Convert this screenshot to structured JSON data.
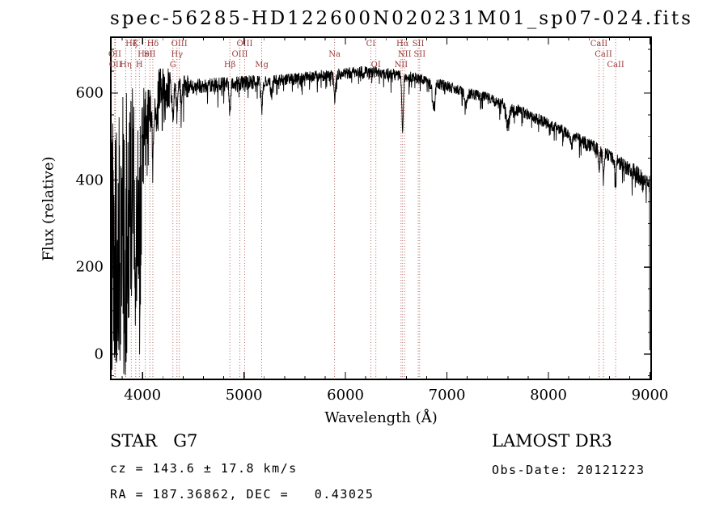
{
  "chart_data": {
    "type": "line",
    "title": "spec-56285-HD122600N020231M01_sp07-024.fits",
    "xlabel": "Wavelength (Å)",
    "ylabel": "Flux (relative)",
    "xlim": [
      3680,
      9020
    ],
    "ylim": [
      -60,
      730
    ],
    "xticks": [
      4000,
      5000,
      6000,
      7000,
      8000,
      9000
    ],
    "yticks": [
      0,
      200,
      400,
      600
    ],
    "x_minor_step": 200,
    "y_minor_step": 50,
    "grid": false,
    "legend": "none",
    "line_color": "#000000",
    "marker_line_color": "#9c3c3c",
    "noise_seed": 20121223,
    "sampling": {
      "start": 3692,
      "end": 9006,
      "step": 2.2
    },
    "edge_drop": {
      "wavelength": 8998,
      "flux": 10
    },
    "envelope": [
      [
        3692,
        600
      ],
      [
        3800,
        608
      ],
      [
        3900,
        612
      ],
      [
        4000,
        615
      ],
      [
        4100,
        612
      ],
      [
        4200,
        610
      ],
      [
        4300,
        612
      ],
      [
        4400,
        615
      ],
      [
        4500,
        615
      ],
      [
        4700,
        618
      ],
      [
        4900,
        620
      ],
      [
        5100,
        625
      ],
      [
        5300,
        628
      ],
      [
        5500,
        632
      ],
      [
        5700,
        638
      ],
      [
        5900,
        642
      ],
      [
        6000,
        645
      ],
      [
        6150,
        648
      ],
      [
        6300,
        648
      ],
      [
        6450,
        643
      ],
      [
        6600,
        638
      ],
      [
        6750,
        632
      ],
      [
        6900,
        622
      ],
      [
        7050,
        612
      ],
      [
        7200,
        600
      ],
      [
        7350,
        592
      ],
      [
        7500,
        580
      ],
      [
        7650,
        565
      ],
      [
        7800,
        550
      ],
      [
        7950,
        535
      ],
      [
        8100,
        518
      ],
      [
        8250,
        500
      ],
      [
        8400,
        482
      ],
      [
        8550,
        462
      ],
      [
        8700,
        440
      ],
      [
        8800,
        425
      ],
      [
        8900,
        408
      ],
      [
        8960,
        395
      ],
      [
        9006,
        388
      ]
    ],
    "noise_regions": [
      [
        3690,
        3870,
        660,
        "down"
      ],
      [
        3870,
        3990,
        480,
        "down"
      ],
      [
        3990,
        4060,
        230,
        "down"
      ],
      [
        4060,
        4150,
        110,
        "down"
      ],
      [
        4150,
        4280,
        55,
        "sym"
      ],
      [
        4280,
        4450,
        30,
        "sym"
      ],
      [
        4450,
        5200,
        20,
        "sym"
      ],
      [
        5200,
        6500,
        16,
        "sym"
      ],
      [
        6500,
        7400,
        15,
        "sym"
      ],
      [
        7400,
        8300,
        16,
        "sym"
      ],
      [
        8300,
        8760,
        19,
        "sym"
      ],
      [
        8760,
        9010,
        24,
        "sym"
      ]
    ],
    "absorption_dips": [
      [
        3934,
        180,
        6
      ],
      [
        3969,
        180,
        6
      ],
      [
        4102,
        110,
        7
      ],
      [
        4227,
        35,
        6
      ],
      [
        4300,
        55,
        9
      ],
      [
        4340,
        65,
        7
      ],
      [
        4383,
        35,
        6
      ],
      [
        4861,
        65,
        7
      ],
      [
        5175,
        45,
        11
      ],
      [
        5270,
        28,
        8
      ],
      [
        5893,
        55,
        8
      ],
      [
        6563,
        135,
        7
      ],
      [
        6870,
        55,
        13
      ],
      [
        7190,
        28,
        12
      ],
      [
        7600,
        42,
        16
      ],
      [
        8230,
        22,
        9
      ],
      [
        8498,
        52,
        6
      ],
      [
        8542,
        62,
        6
      ],
      [
        8662,
        58,
        6
      ]
    ],
    "spectral_lines": [
      {
        "label": "OII",
        "wavelength": 3727,
        "row": 2
      },
      {
        "label": "OII",
        "wavelength": 3734,
        "row": 3
      },
      {
        "label": "Hη",
        "wavelength": 3835,
        "row": 3
      },
      {
        "label": "Hζ",
        "wavelength": 3889,
        "row": 1
      },
      {
        "label": "K",
        "wavelength": 3934,
        "row": 1
      },
      {
        "label": "H",
        "wavelength": 3969,
        "row": 3
      },
      {
        "label": "HeI",
        "wavelength": 4026,
        "row": 2
      },
      {
        "label": "SII",
        "wavelength": 4072,
        "row": 2
      },
      {
        "label": "Hδ",
        "wavelength": 4102,
        "row": 1
      },
      {
        "label": "G",
        "wavelength": 4300,
        "row": 3
      },
      {
        "label": "Hγ",
        "wavelength": 4340,
        "row": 2
      },
      {
        "label": "OIII",
        "wavelength": 4363,
        "row": 1
      },
      {
        "label": "Hβ",
        "wavelength": 4861,
        "row": 3
      },
      {
        "label": "OIII",
        "wavelength": 4959,
        "row": 2
      },
      {
        "label": "OIII",
        "wavelength": 5007,
        "row": 1
      },
      {
        "label": "Mg",
        "wavelength": 5175,
        "row": 3
      },
      {
        "label": "Na",
        "wavelength": 5893,
        "row": 2
      },
      {
        "label": "CI",
        "wavelength": 6250,
        "row": 1
      },
      {
        "label": "OI",
        "wavelength": 6300,
        "row": 3
      },
      {
        "label": "NII",
        "wavelength": 6548,
        "row": 3
      },
      {
        "label": "Hα",
        "wavelength": 6563,
        "row": 1
      },
      {
        "label": "NII",
        "wavelength": 6583,
        "row": 2
      },
      {
        "label": "SII",
        "wavelength": 6717,
        "row": 1
      },
      {
        "label": "SII",
        "wavelength": 6731,
        "row": 2
      },
      {
        "label": "CaII",
        "wavelength": 8498,
        "row": 1
      },
      {
        "label": "CaII",
        "wavelength": 8542,
        "row": 2
      },
      {
        "label": "CaII",
        "wavelength": 8662,
        "row": 3
      }
    ]
  },
  "footer": {
    "object_class": "STAR   G7",
    "cz": "cz = 143.6 ± 17.8 km/s",
    "ra_dec": "RA = 187.36862, DEC =   0.43025",
    "survey": "LAMOST DR3",
    "obs_date": "Obs-Date: 20121223"
  }
}
